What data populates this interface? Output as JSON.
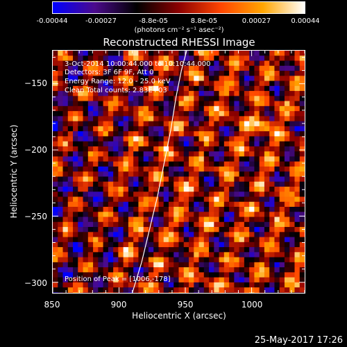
{
  "chart_data": {
    "type": "heatmap",
    "title": "Reconstructed RHESSI Image",
    "xlabel": "Heliocentric X (arcsec)",
    "ylabel": "Heliocentric Y (arcsec)",
    "xlim": [
      850,
      1040
    ],
    "ylim": [
      -308,
      -125
    ],
    "x_ticks": [
      850,
      900,
      950,
      1000
    ],
    "y_ticks": [
      -300,
      -250,
      -200,
      -150
    ],
    "colorbar": {
      "min": -0.00044,
      "max": 0.00044,
      "tick_values": [
        -0.00044,
        -0.00027,
        -8.8e-05,
        8.8e-05,
        0.00027,
        0.00044
      ],
      "tick_labels": [
        "-0.00044",
        "-0.00027",
        "-8.8e-05",
        "8.8e-05",
        "0.00027",
        "0.00044"
      ],
      "unit_label": "(photons cm⁻² s⁻¹ asec⁻²)",
      "position": "top"
    },
    "info_text": [
      "3-Oct-2014 10:00:44.000 to 10:10:44.000",
      "Detectors: 3F 6F 9F, Att 0",
      "Energy Range: 12.0 - 25.0 keV",
      "Clean     Total counts: 2.83E+03"
    ],
    "peak_text": "Position of Peak = [1006,-178]",
    "peak": {
      "x": 1006,
      "y": -178
    },
    "limb_curve": {
      "x": [
        910,
        917,
        923,
        929,
        934,
        939,
        943,
        947,
        951
      ],
      "y": [
        -308,
        -285,
        -260,
        -235,
        -210,
        -185,
        -160,
        -140,
        -125
      ]
    },
    "colors": {
      "colormap": [
        "#0000ff",
        "#4b0a8c",
        "#000000",
        "#8b0000",
        "#ff4500",
        "#ffa500",
        "#ffffff"
      ],
      "limb": "#ffffff"
    }
  },
  "footer": {
    "timestamp": "25-May-2017 17:26"
  }
}
